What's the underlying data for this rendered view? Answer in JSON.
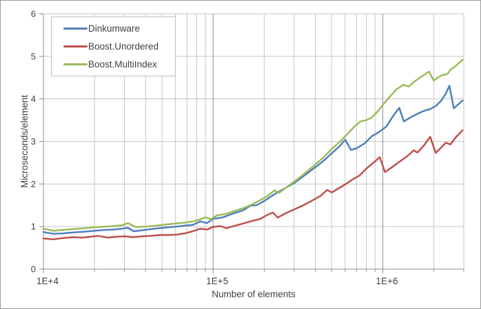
{
  "window": {
    "background": "#ffffff",
    "border_color": "#9d9d9d"
  },
  "chart_data": {
    "type": "line",
    "title": "",
    "xlabel": "Number of elements",
    "ylabel": "Microseconds/element",
    "x_scale": "log",
    "x_range": [
      10000,
      3000000
    ],
    "y_range": [
      0,
      6
    ],
    "y_ticks": [
      0,
      1,
      2,
      3,
      4,
      5,
      6
    ],
    "x_tick_labels": [
      {
        "value": 10000,
        "label": "1E+4"
      },
      {
        "value": 100000,
        "label": "1E+5"
      },
      {
        "value": 1000000,
        "label": "1E+6"
      }
    ],
    "grid": {
      "show": true,
      "minor_color": "#c6c6c6",
      "major_color": "#8e8e8e",
      "axis_color": "#8e8e8e",
      "text_color": "#3f3f3f"
    },
    "legend": {
      "position": "top-left",
      "border_color": "#bdbdbd"
    },
    "series": [
      {
        "name": "Dinkumware",
        "color": "#4f81bd",
        "points": [
          [
            10000,
            0.87
          ],
          [
            11500,
            0.83
          ],
          [
            13000,
            0.84
          ],
          [
            15000,
            0.86
          ],
          [
            17500,
            0.88
          ],
          [
            20000,
            0.9
          ],
          [
            23000,
            0.92
          ],
          [
            26000,
            0.93
          ],
          [
            29000,
            0.95
          ],
          [
            31500,
            0.97
          ],
          [
            34000,
            0.89
          ],
          [
            38000,
            0.91
          ],
          [
            43000,
            0.94
          ],
          [
            48000,
            0.96
          ],
          [
            54000,
            0.98
          ],
          [
            61000,
            1.0
          ],
          [
            68000,
            1.02
          ],
          [
            76000,
            1.04
          ],
          [
            84000,
            1.12
          ],
          [
            92000,
            1.08
          ],
          [
            100000,
            1.18
          ],
          [
            115000,
            1.22
          ],
          [
            130000,
            1.3
          ],
          [
            150000,
            1.38
          ],
          [
            166000,
            1.49
          ],
          [
            180000,
            1.5
          ],
          [
            200000,
            1.6
          ],
          [
            230000,
            1.76
          ],
          [
            260000,
            1.88
          ],
          [
            300000,
            2.02
          ],
          [
            340000,
            2.18
          ],
          [
            390000,
            2.36
          ],
          [
            440000,
            2.52
          ],
          [
            500000,
            2.72
          ],
          [
            560000,
            2.9
          ],
          [
            600000,
            3.04
          ],
          [
            650000,
            2.8
          ],
          [
            700000,
            2.84
          ],
          [
            780000,
            2.95
          ],
          [
            860000,
            3.12
          ],
          [
            950000,
            3.22
          ],
          [
            1050000,
            3.35
          ],
          [
            1150000,
            3.6
          ],
          [
            1250000,
            3.79
          ],
          [
            1330000,
            3.47
          ],
          [
            1450000,
            3.56
          ],
          [
            1600000,
            3.65
          ],
          [
            1750000,
            3.72
          ],
          [
            1900000,
            3.76
          ],
          [
            2050000,
            3.83
          ],
          [
            2200000,
            3.95
          ],
          [
            2350000,
            4.12
          ],
          [
            2470000,
            4.31
          ],
          [
            2620000,
            3.78
          ],
          [
            2800000,
            3.88
          ],
          [
            2950000,
            3.96
          ]
        ]
      },
      {
        "name": "Boost.Unordered",
        "color": "#c0504d",
        "points": [
          [
            10000,
            0.72
          ],
          [
            11500,
            0.7
          ],
          [
            13000,
            0.73
          ],
          [
            15000,
            0.75
          ],
          [
            17000,
            0.74
          ],
          [
            19000,
            0.76
          ],
          [
            21000,
            0.78
          ],
          [
            24000,
            0.74
          ],
          [
            27000,
            0.76
          ],
          [
            30000,
            0.77
          ],
          [
            34000,
            0.75
          ],
          [
            38000,
            0.77
          ],
          [
            43000,
            0.78
          ],
          [
            48000,
            0.8
          ],
          [
            54000,
            0.8
          ],
          [
            61000,
            0.81
          ],
          [
            68000,
            0.84
          ],
          [
            76000,
            0.89
          ],
          [
            84000,
            0.95
          ],
          [
            92000,
            0.93
          ],
          [
            100000,
            0.99
          ],
          [
            110000,
            1.01
          ],
          [
            120000,
            0.96
          ],
          [
            135000,
            1.02
          ],
          [
            150000,
            1.07
          ],
          [
            170000,
            1.13
          ],
          [
            190000,
            1.18
          ],
          [
            210000,
            1.28
          ],
          [
            225000,
            1.33
          ],
          [
            240000,
            1.21
          ],
          [
            270000,
            1.32
          ],
          [
            300000,
            1.4
          ],
          [
            340000,
            1.5
          ],
          [
            380000,
            1.6
          ],
          [
            430000,
            1.72
          ],
          [
            470000,
            1.86
          ],
          [
            500000,
            1.8
          ],
          [
            550000,
            1.9
          ],
          [
            600000,
            1.99
          ],
          [
            660000,
            2.1
          ],
          [
            730000,
            2.2
          ],
          [
            800000,
            2.36
          ],
          [
            880000,
            2.5
          ],
          [
            960000,
            2.63
          ],
          [
            1030000,
            2.28
          ],
          [
            1120000,
            2.38
          ],
          [
            1250000,
            2.52
          ],
          [
            1400000,
            2.66
          ],
          [
            1520000,
            2.79
          ],
          [
            1600000,
            2.74
          ],
          [
            1750000,
            2.91
          ],
          [
            1900000,
            3.11
          ],
          [
            2050000,
            2.73
          ],
          [
            2200000,
            2.85
          ],
          [
            2350000,
            2.97
          ],
          [
            2500000,
            2.93
          ],
          [
            2700000,
            3.1
          ],
          [
            2950000,
            3.26
          ]
        ]
      },
      {
        "name": "Boost.MultiIndex",
        "color": "#9bbb59",
        "points": [
          [
            10000,
            0.95
          ],
          [
            11500,
            0.9
          ],
          [
            13000,
            0.92
          ],
          [
            15000,
            0.94
          ],
          [
            17500,
            0.96
          ],
          [
            20000,
            0.98
          ],
          [
            23000,
            1.0
          ],
          [
            26000,
            1.01
          ],
          [
            29000,
            1.03
          ],
          [
            31500,
            1.08
          ],
          [
            35000,
            0.99
          ],
          [
            40000,
            1.0
          ],
          [
            46000,
            1.02
          ],
          [
            53000,
            1.05
          ],
          [
            60000,
            1.07
          ],
          [
            68000,
            1.09
          ],
          [
            76000,
            1.12
          ],
          [
            84000,
            1.17
          ],
          [
            90000,
            1.22
          ],
          [
            97000,
            1.17
          ],
          [
            105000,
            1.26
          ],
          [
            120000,
            1.3
          ],
          [
            135000,
            1.37
          ],
          [
            150000,
            1.43
          ],
          [
            170000,
            1.52
          ],
          [
            190000,
            1.62
          ],
          [
            210000,
            1.72
          ],
          [
            230000,
            1.85
          ],
          [
            245000,
            1.79
          ],
          [
            270000,
            1.92
          ],
          [
            300000,
            2.05
          ],
          [
            340000,
            2.22
          ],
          [
            390000,
            2.42
          ],
          [
            440000,
            2.6
          ],
          [
            500000,
            2.82
          ],
          [
            560000,
            3.0
          ],
          [
            620000,
            3.18
          ],
          [
            680000,
            3.35
          ],
          [
            740000,
            3.47
          ],
          [
            800000,
            3.5
          ],
          [
            860000,
            3.56
          ],
          [
            940000,
            3.72
          ],
          [
            1000000,
            3.86
          ],
          [
            1100000,
            4.05
          ],
          [
            1200000,
            4.22
          ],
          [
            1320000,
            4.33
          ],
          [
            1420000,
            4.29
          ],
          [
            1550000,
            4.42
          ],
          [
            1700000,
            4.53
          ],
          [
            1870000,
            4.64
          ],
          [
            2000000,
            4.43
          ],
          [
            2100000,
            4.5
          ],
          [
            2250000,
            4.56
          ],
          [
            2400000,
            4.58
          ],
          [
            2500000,
            4.68
          ],
          [
            2700000,
            4.78
          ],
          [
            2950000,
            4.92
          ]
        ]
      }
    ]
  }
}
